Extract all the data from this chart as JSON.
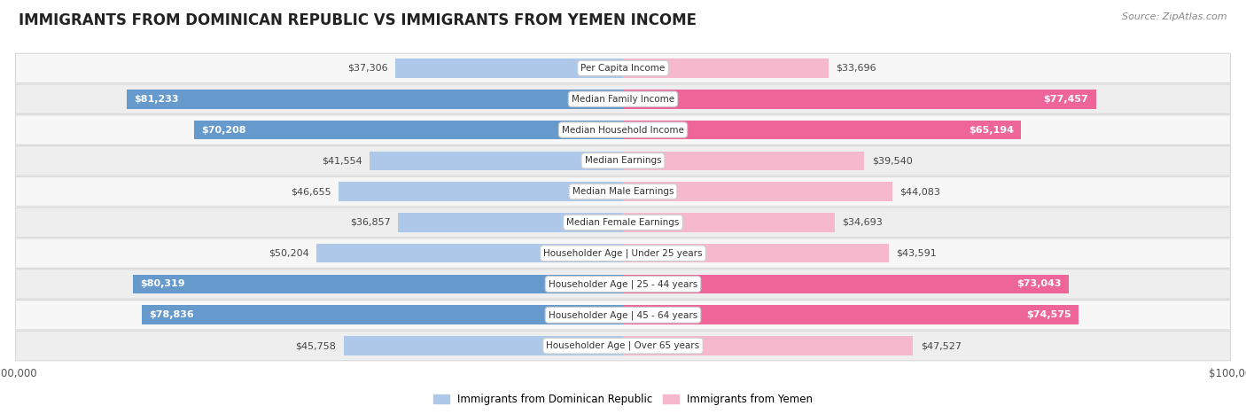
{
  "title": "IMMIGRANTS FROM DOMINICAN REPUBLIC VS IMMIGRANTS FROM YEMEN INCOME",
  "source": "Source: ZipAtlas.com",
  "categories": [
    "Per Capita Income",
    "Median Family Income",
    "Median Household Income",
    "Median Earnings",
    "Median Male Earnings",
    "Median Female Earnings",
    "Householder Age | Under 25 years",
    "Householder Age | 25 - 44 years",
    "Householder Age | 45 - 64 years",
    "Householder Age | Over 65 years"
  ],
  "left_values": [
    37306,
    81233,
    70208,
    41554,
    46655,
    36857,
    50204,
    80319,
    78836,
    45758
  ],
  "right_values": [
    33696,
    77457,
    65194,
    39540,
    44083,
    34693,
    43591,
    73043,
    74575,
    47527
  ],
  "left_labels": [
    "$37,306",
    "$81,233",
    "$70,208",
    "$41,554",
    "$46,655",
    "$36,857",
    "$50,204",
    "$80,319",
    "$78,836",
    "$45,758"
  ],
  "right_labels": [
    "$33,696",
    "$77,457",
    "$65,194",
    "$39,540",
    "$44,083",
    "$34,693",
    "$43,591",
    "$73,043",
    "$74,575",
    "$47,527"
  ],
  "max_value": 100000,
  "left_color_light": "#adc8e8",
  "left_color_dark": "#6699cc",
  "right_color_light": "#f5b8cc",
  "right_color_dark": "#ee6699",
  "left_legend": "Immigrants from Dominican Republic",
  "right_legend": "Immigrants from Yemen",
  "label_inside_threshold": 60000,
  "title_fontsize": 12,
  "source_fontsize": 8,
  "axis_label_fontsize": 8.5,
  "bar_label_fontsize": 8,
  "cat_label_fontsize": 7.5,
  "row_bg_light": "#f7f7f7",
  "row_bg_dark": "#eeeeee",
  "row_border": "#d8d8d8"
}
